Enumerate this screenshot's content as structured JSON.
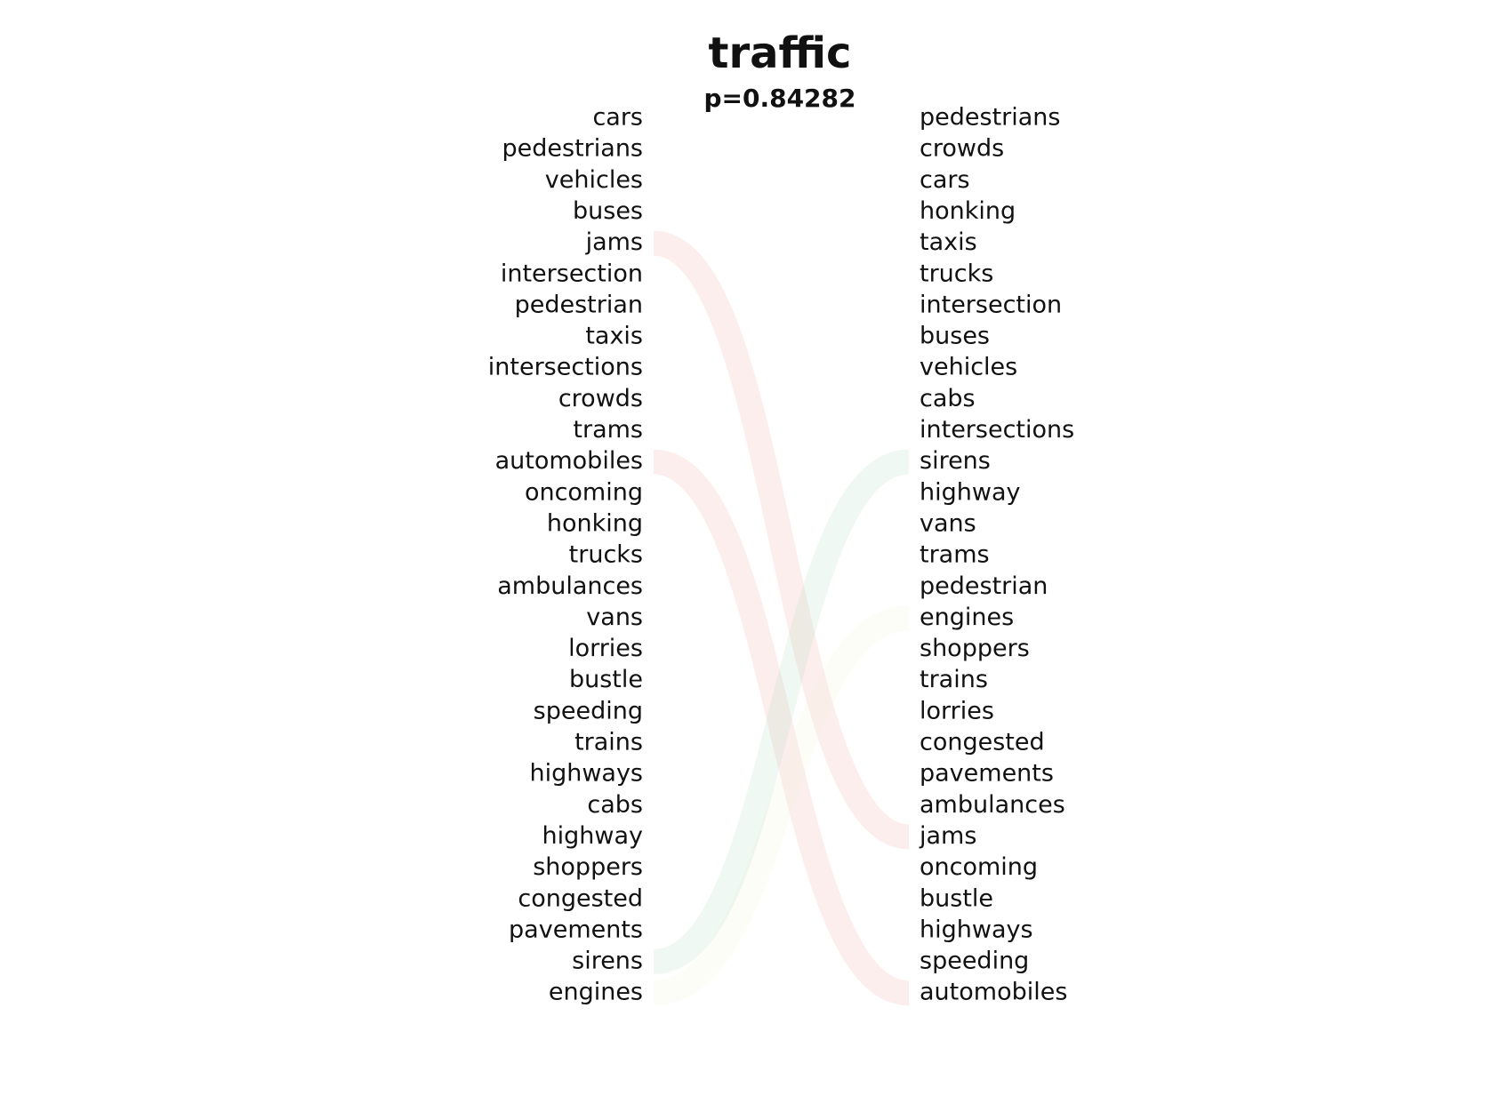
{
  "chart_data": {
    "type": "bump-chart",
    "title": "traffic",
    "subtitle": "p=0.84282",
    "left_ranking": [
      "cars",
      "pedestrians",
      "vehicles",
      "buses",
      "jams",
      "intersection",
      "pedestrian",
      "taxis",
      "intersections",
      "crowds",
      "trams",
      "automobiles",
      "oncoming",
      "honking",
      "trucks",
      "ambulances",
      "vans",
      "lorries",
      "bustle",
      "speeding",
      "trains",
      "highways",
      "cabs",
      "highway",
      "shoppers",
      "congested",
      "pavements",
      "sirens",
      "engines"
    ],
    "right_ranking": [
      "pedestrians",
      "crowds",
      "cars",
      "honking",
      "taxis",
      "trucks",
      "intersection",
      "buses",
      "vehicles",
      "cabs",
      "intersections",
      "sirens",
      "highway",
      "vans",
      "trams",
      "pedestrian",
      "engines",
      "shoppers",
      "trains",
      "lorries",
      "congested",
      "pavements",
      "ambulances",
      "jams",
      "oncoming",
      "bustle",
      "highways",
      "speeding",
      "automobiles"
    ],
    "highlighted_links": [
      {
        "word": "jams",
        "left_rank": 5,
        "right_rank": 24,
        "color": "#f4a0a0",
        "opacity": 0.18
      },
      {
        "word": "automobiles",
        "left_rank": 12,
        "right_rank": 29,
        "color": "#f4a0a0",
        "opacity": 0.18
      },
      {
        "word": "sirens",
        "left_rank": 28,
        "right_rank": 12,
        "color": "#a8d8b8",
        "opacity": 0.18
      },
      {
        "word": "engines",
        "left_rank": 29,
        "right_rank": 17,
        "color": "#e8efc0",
        "opacity": 0.12
      }
    ],
    "colors": {
      "text": "#111111",
      "background": "#ffffff"
    }
  }
}
